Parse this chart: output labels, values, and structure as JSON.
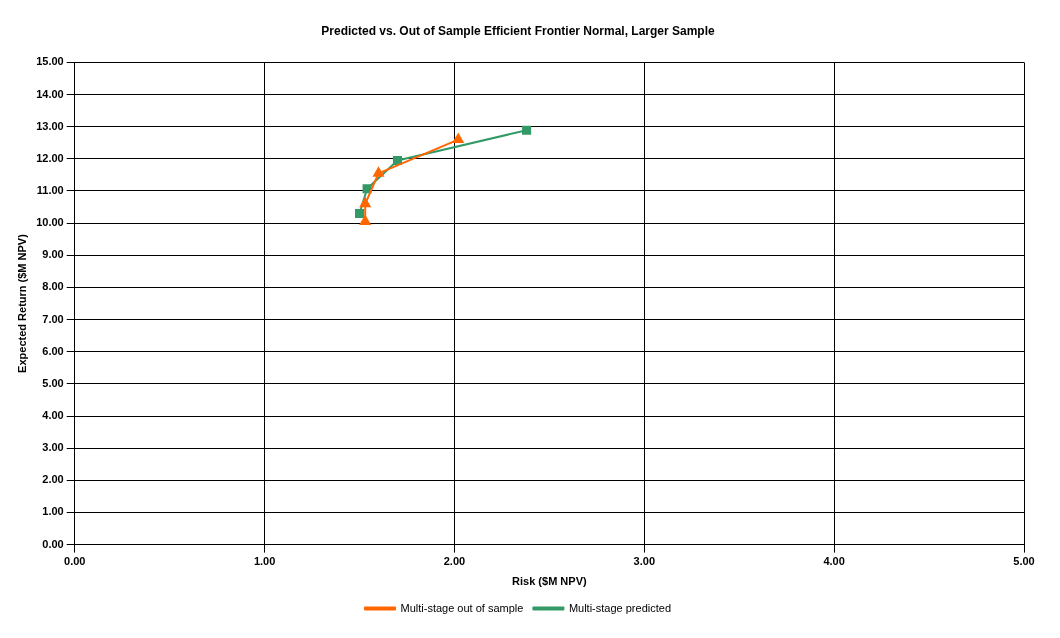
{
  "chart_data": {
    "type": "line",
    "title": "Predicted vs. Out of Sample Efficient Frontier Normal, Larger Sample",
    "xlabel": "Risk ($M NPV)",
    "ylabel": "Expected Return ($M NPV)",
    "series": [
      {
        "name": "Multi-stage out of sample",
        "color": "#ff6600",
        "marker": "triangle",
        "x": [
          1.53,
          1.53,
          1.6,
          2.02
        ],
        "values": [
          10.05,
          10.6,
          11.55,
          12.6
        ]
      },
      {
        "name": "Multi-stage predicted",
        "color": "#339966",
        "marker": "square",
        "x": [
          1.5,
          1.54,
          1.7,
          2.38
        ],
        "values": [
          10.3,
          11.07,
          11.95,
          12.89
        ]
      }
    ],
    "xlim": [
      0,
      5
    ],
    "xticks": [
      {
        "value": 0,
        "label": "0.00"
      },
      {
        "value": 1,
        "label": "1.00"
      },
      {
        "value": 2,
        "label": "2.00"
      },
      {
        "value": 3,
        "label": "3.00"
      },
      {
        "value": 4,
        "label": "4.00"
      },
      {
        "value": 5,
        "label": "5.00"
      }
    ],
    "ylim": [
      0,
      15
    ],
    "yticks": [
      {
        "value": 0,
        "label": "0.00"
      },
      {
        "value": 1,
        "label": "1.00"
      },
      {
        "value": 2,
        "label": "2.00"
      },
      {
        "value": 3,
        "label": "3.00"
      },
      {
        "value": 4,
        "label": "4.00"
      },
      {
        "value": 5,
        "label": "5.00"
      },
      {
        "value": 6,
        "label": "6.00"
      },
      {
        "value": 7,
        "label": "7.00"
      },
      {
        "value": 8,
        "label": "8.00"
      },
      {
        "value": 9,
        "label": "9.00"
      },
      {
        "value": 10,
        "label": "10.00"
      },
      {
        "value": 11,
        "label": "11.00"
      },
      {
        "value": 12,
        "label": "12.00"
      },
      {
        "value": 13,
        "label": "13.00"
      },
      {
        "value": 14,
        "label": "14.00"
      },
      {
        "value": 15,
        "label": "15.00"
      }
    ],
    "grid": true,
    "legend": "bottom",
    "line_style": "solid"
  }
}
